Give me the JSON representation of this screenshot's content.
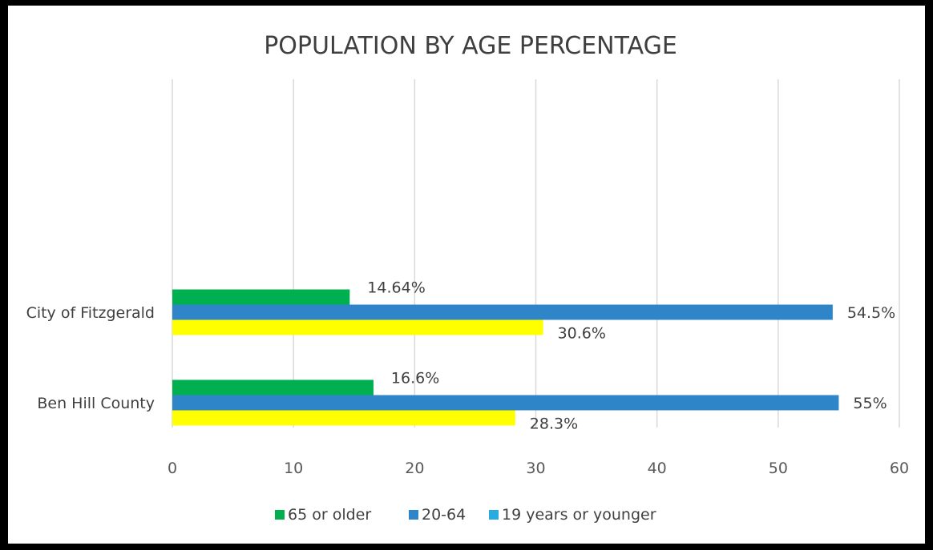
{
  "chart_data": {
    "type": "bar",
    "orientation": "horizontal",
    "title": "POPULATION BY AGE PERCENTAGE",
    "categories": [
      "City of Fitzgerald",
      "Ben Hill County"
    ],
    "series": [
      {
        "name": "65 or older",
        "color": "#00b050",
        "values": [
          14.64,
          16.6
        ],
        "labels": [
          "14.64%",
          "16.6%"
        ]
      },
      {
        "name": "20-64",
        "color": "#2e86c9",
        "values": [
          54.5,
          55
        ],
        "labels": [
          "54.5%",
          "55%"
        ]
      },
      {
        "name": "19 years or younger",
        "color": "#ffff00",
        "values": [
          30.6,
          28.3
        ],
        "labels": [
          "30.6%",
          "28.3%"
        ]
      }
    ],
    "legend": [
      {
        "name": "65 or older",
        "color": "#00b050"
      },
      {
        "name": "20-64",
        "color": "#2e86c9"
      },
      {
        "name": "19 years or younger",
        "color": "#29abe2"
      }
    ],
    "xlim": [
      0,
      60
    ],
    "xticks": [
      0,
      10,
      20,
      30,
      40,
      50,
      60
    ],
    "grid": true,
    "legend_position": "bottom"
  }
}
